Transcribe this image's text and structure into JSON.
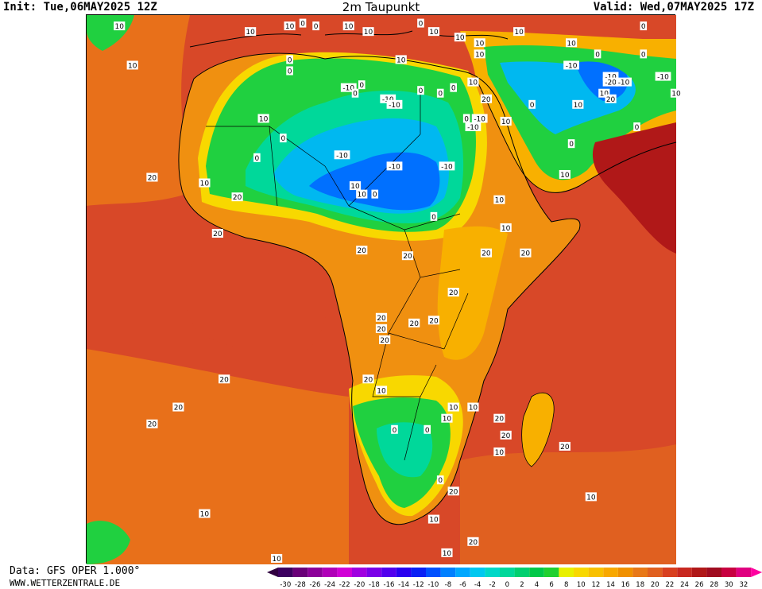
{
  "header": {
    "init": "Init: Tue,06MAY2025 12Z",
    "title": "2m Taupunkt",
    "valid": "Valid: Wed,07MAY2025 17Z"
  },
  "footer": {
    "data_source": "Data: GFS OPER 1.000°",
    "website": "WWW.WETTERZENTRALE.DE"
  },
  "legend": {
    "ticks": [
      "-30",
      "-28",
      "-26",
      "-24",
      "-22",
      "-20",
      "-18",
      "-16",
      "-14",
      "-12",
      "-10",
      "-8",
      "-6",
      "-4",
      "-2",
      "0",
      "2",
      "4",
      "6",
      "8",
      "10",
      "12",
      "14",
      "16",
      "18",
      "20",
      "22",
      "24",
      "26",
      "28",
      "30",
      "32"
    ],
    "colors": [
      "#3c0060",
      "#6a0078",
      "#8c0099",
      "#b000b8",
      "#d100d6",
      "#a000e0",
      "#7a00e8",
      "#5200ee",
      "#2a00f0",
      "#0a20f5",
      "#0050ff",
      "#0080ff",
      "#00a8ff",
      "#00c8f0",
      "#00d8c8",
      "#00d89a",
      "#00d070",
      "#00c848",
      "#20d030",
      "#e8f000",
      "#f8d800",
      "#f8c000",
      "#f8a800",
      "#f09000",
      "#e87818",
      "#e06020",
      "#d84020",
      "#c82820",
      "#b01818",
      "#a00c20",
      "#c80040",
      "#e00080"
    ],
    "under_color": "#300040",
    "over_color": "#ff00a0"
  },
  "map": {
    "field_colors": {
      "sea_warm": "#d84828",
      "sea_cool": "#e8701a",
      "sea_mild": "#e06020",
      "orange": "#f09010",
      "yellow_orange": "#f8b000",
      "yellow": "#f8d800",
      "green": "#20d040",
      "teal": "#00d89a",
      "cyan": "#00b8f0",
      "blue": "#0070ff",
      "deep_blue": "#0040f0",
      "dark_red": "#b01818"
    },
    "contour_labels": [
      {
        "text": "10",
        "lon": -25,
        "lat": 40
      },
      {
        "text": "10",
        "lon": -5,
        "lat": 39
      },
      {
        "text": "10",
        "lon": 1,
        "lat": 40
      },
      {
        "text": "0",
        "lon": 3,
        "lat": 40.5
      },
      {
        "text": "0",
        "lon": 5,
        "lat": 40
      },
      {
        "text": "10",
        "lon": 10,
        "lat": 40
      },
      {
        "text": "10",
        "lon": 13,
        "lat": 39
      },
      {
        "text": "0",
        "lon": 21,
        "lat": 40.5
      },
      {
        "text": "10",
        "lon": 23,
        "lat": 39
      },
      {
        "text": "10",
        "lon": 27,
        "lat": 38
      },
      {
        "text": "10",
        "lon": 30,
        "lat": 37
      },
      {
        "text": "10",
        "lon": 36,
        "lat": 39
      },
      {
        "text": "0",
        "lon": 55,
        "lat": 40
      },
      {
        "text": "10",
        "lon": -23,
        "lat": 33
      },
      {
        "text": "0",
        "lon": 1,
        "lat": 34
      },
      {
        "text": "0",
        "lon": 1,
        "lat": 32
      },
      {
        "text": "10",
        "lon": 18,
        "lat": 34
      },
      {
        "text": "10",
        "lon": 30,
        "lat": 35
      },
      {
        "text": "0",
        "lon": 48,
        "lat": 35
      },
      {
        "text": "10",
        "lon": 44,
        "lat": 37
      },
      {
        "text": "0",
        "lon": 55,
        "lat": 35
      },
      {
        "text": "-10",
        "lon": 44,
        "lat": 33
      },
      {
        "text": "-10",
        "lon": 50,
        "lat": 31
      },
      {
        "text": "-20",
        "lon": 50,
        "lat": 30
      },
      {
        "text": "-10",
        "lon": 52,
        "lat": 30
      },
      {
        "text": "-10",
        "lon": 58,
        "lat": 31
      },
      {
        "text": "10",
        "lon": 29,
        "lat": 30
      },
      {
        "text": "-10",
        "lon": 10,
        "lat": 29
      },
      {
        "text": "0",
        "lon": 12,
        "lat": 29.5
      },
      {
        "text": "0",
        "lon": 11,
        "lat": 28
      },
      {
        "text": "0",
        "lon": 21,
        "lat": 28.5
      },
      {
        "text": "0",
        "lon": 24,
        "lat": 28
      },
      {
        "text": "0",
        "lon": 26,
        "lat": 29
      },
      {
        "text": "10",
        "lon": 49,
        "lat": 28
      },
      {
        "text": "20",
        "lon": 50,
        "lat": 27
      },
      {
        "text": "10",
        "lon": 60,
        "lat": 28
      },
      {
        "text": "-10",
        "lon": 16,
        "lat": 27
      },
      {
        "text": "-10",
        "lon": 17,
        "lat": 26
      },
      {
        "text": "20",
        "lon": 31,
        "lat": 27
      },
      {
        "text": "0",
        "lon": 38,
        "lat": 26
      },
      {
        "text": "10",
        "lon": 45,
        "lat": 26
      },
      {
        "text": "0",
        "lon": 28,
        "lat": 23.5
      },
      {
        "text": "-10",
        "lon": 30,
        "lat": 23.5
      },
      {
        "text": "-10",
        "lon": 29,
        "lat": 22
      },
      {
        "text": "10",
        "lon": 34,
        "lat": 23
      },
      {
        "text": "10",
        "lon": -3,
        "lat": 23.5
      },
      {
        "text": "0",
        "lon": 54,
        "lat": 22
      },
      {
        "text": "0",
        "lon": 0,
        "lat": 20
      },
      {
        "text": "0",
        "lon": 44,
        "lat": 19
      },
      {
        "text": "-10",
        "lon": 9,
        "lat": 17
      },
      {
        "text": "0",
        "lon": -4,
        "lat": 16.5
      },
      {
        "text": "-10",
        "lon": 25,
        "lat": 15
      },
      {
        "text": "-10",
        "lon": 17,
        "lat": 15
      },
      {
        "text": "20",
        "lon": -20,
        "lat": 13
      },
      {
        "text": "10",
        "lon": -12,
        "lat": 12
      },
      {
        "text": "10",
        "lon": 43,
        "lat": 13.5
      },
      {
        "text": "10",
        "lon": 11,
        "lat": 11.5
      },
      {
        "text": "10",
        "lon": 12,
        "lat": 10
      },
      {
        "text": "0",
        "lon": 14,
        "lat": 10
      },
      {
        "text": "20",
        "lon": -7,
        "lat": 9.5
      },
      {
        "text": "10",
        "lon": 33,
        "lat": 9
      },
      {
        "text": "0",
        "lon": 23,
        "lat": 6
      },
      {
        "text": "10",
        "lon": 34,
        "lat": 4
      },
      {
        "text": "20",
        "lon": -10,
        "lat": 3
      },
      {
        "text": "20",
        "lon": 12,
        "lat": 0
      },
      {
        "text": "20",
        "lon": 19,
        "lat": -1
      },
      {
        "text": "20",
        "lon": 31,
        "lat": -0.5
      },
      {
        "text": "20",
        "lon": 37,
        "lat": -0.5
      },
      {
        "text": "20",
        "lon": 26,
        "lat": -7.5
      },
      {
        "text": "20",
        "lon": 15,
        "lat": -12
      },
      {
        "text": "20",
        "lon": 20,
        "lat": -13
      },
      {
        "text": "20",
        "lon": 23,
        "lat": -12.5
      },
      {
        "text": "20",
        "lon": 15,
        "lat": -14
      },
      {
        "text": "20",
        "lon": 15.5,
        "lat": -16
      },
      {
        "text": "20",
        "lon": -9,
        "lat": -23
      },
      {
        "text": "20",
        "lon": 13,
        "lat": -23
      },
      {
        "text": "10",
        "lon": 15,
        "lat": -25
      },
      {
        "text": "10",
        "lon": 26,
        "lat": -28
      },
      {
        "text": "10",
        "lon": 29,
        "lat": -28
      },
      {
        "text": "10",
        "lon": 25,
        "lat": -30
      },
      {
        "text": "0",
        "lon": 17,
        "lat": -32
      },
      {
        "text": "0",
        "lon": 22,
        "lat": -32
      },
      {
        "text": "20",
        "lon": 33,
        "lat": -30
      },
      {
        "text": "20",
        "lon": -16,
        "lat": -28
      },
      {
        "text": "20",
        "lon": -20,
        "lat": -31
      },
      {
        "text": "20",
        "lon": 34,
        "lat": -33
      },
      {
        "text": "10",
        "lon": 33,
        "lat": -36
      },
      {
        "text": "20",
        "lon": 43,
        "lat": -35
      },
      {
        "text": "0",
        "lon": 24,
        "lat": -41
      },
      {
        "text": "20",
        "lon": 26,
        "lat": -43
      },
      {
        "text": "10",
        "lon": 47,
        "lat": -44
      },
      {
        "text": "10",
        "lon": -12,
        "lat": -47
      },
      {
        "text": "10",
        "lon": 23,
        "lat": -48
      },
      {
        "text": "20",
        "lon": 29,
        "lat": -52
      },
      {
        "text": "10",
        "lon": -1,
        "lat": -55
      },
      {
        "text": "10",
        "lon": 25,
        "lat": -54
      }
    ]
  }
}
